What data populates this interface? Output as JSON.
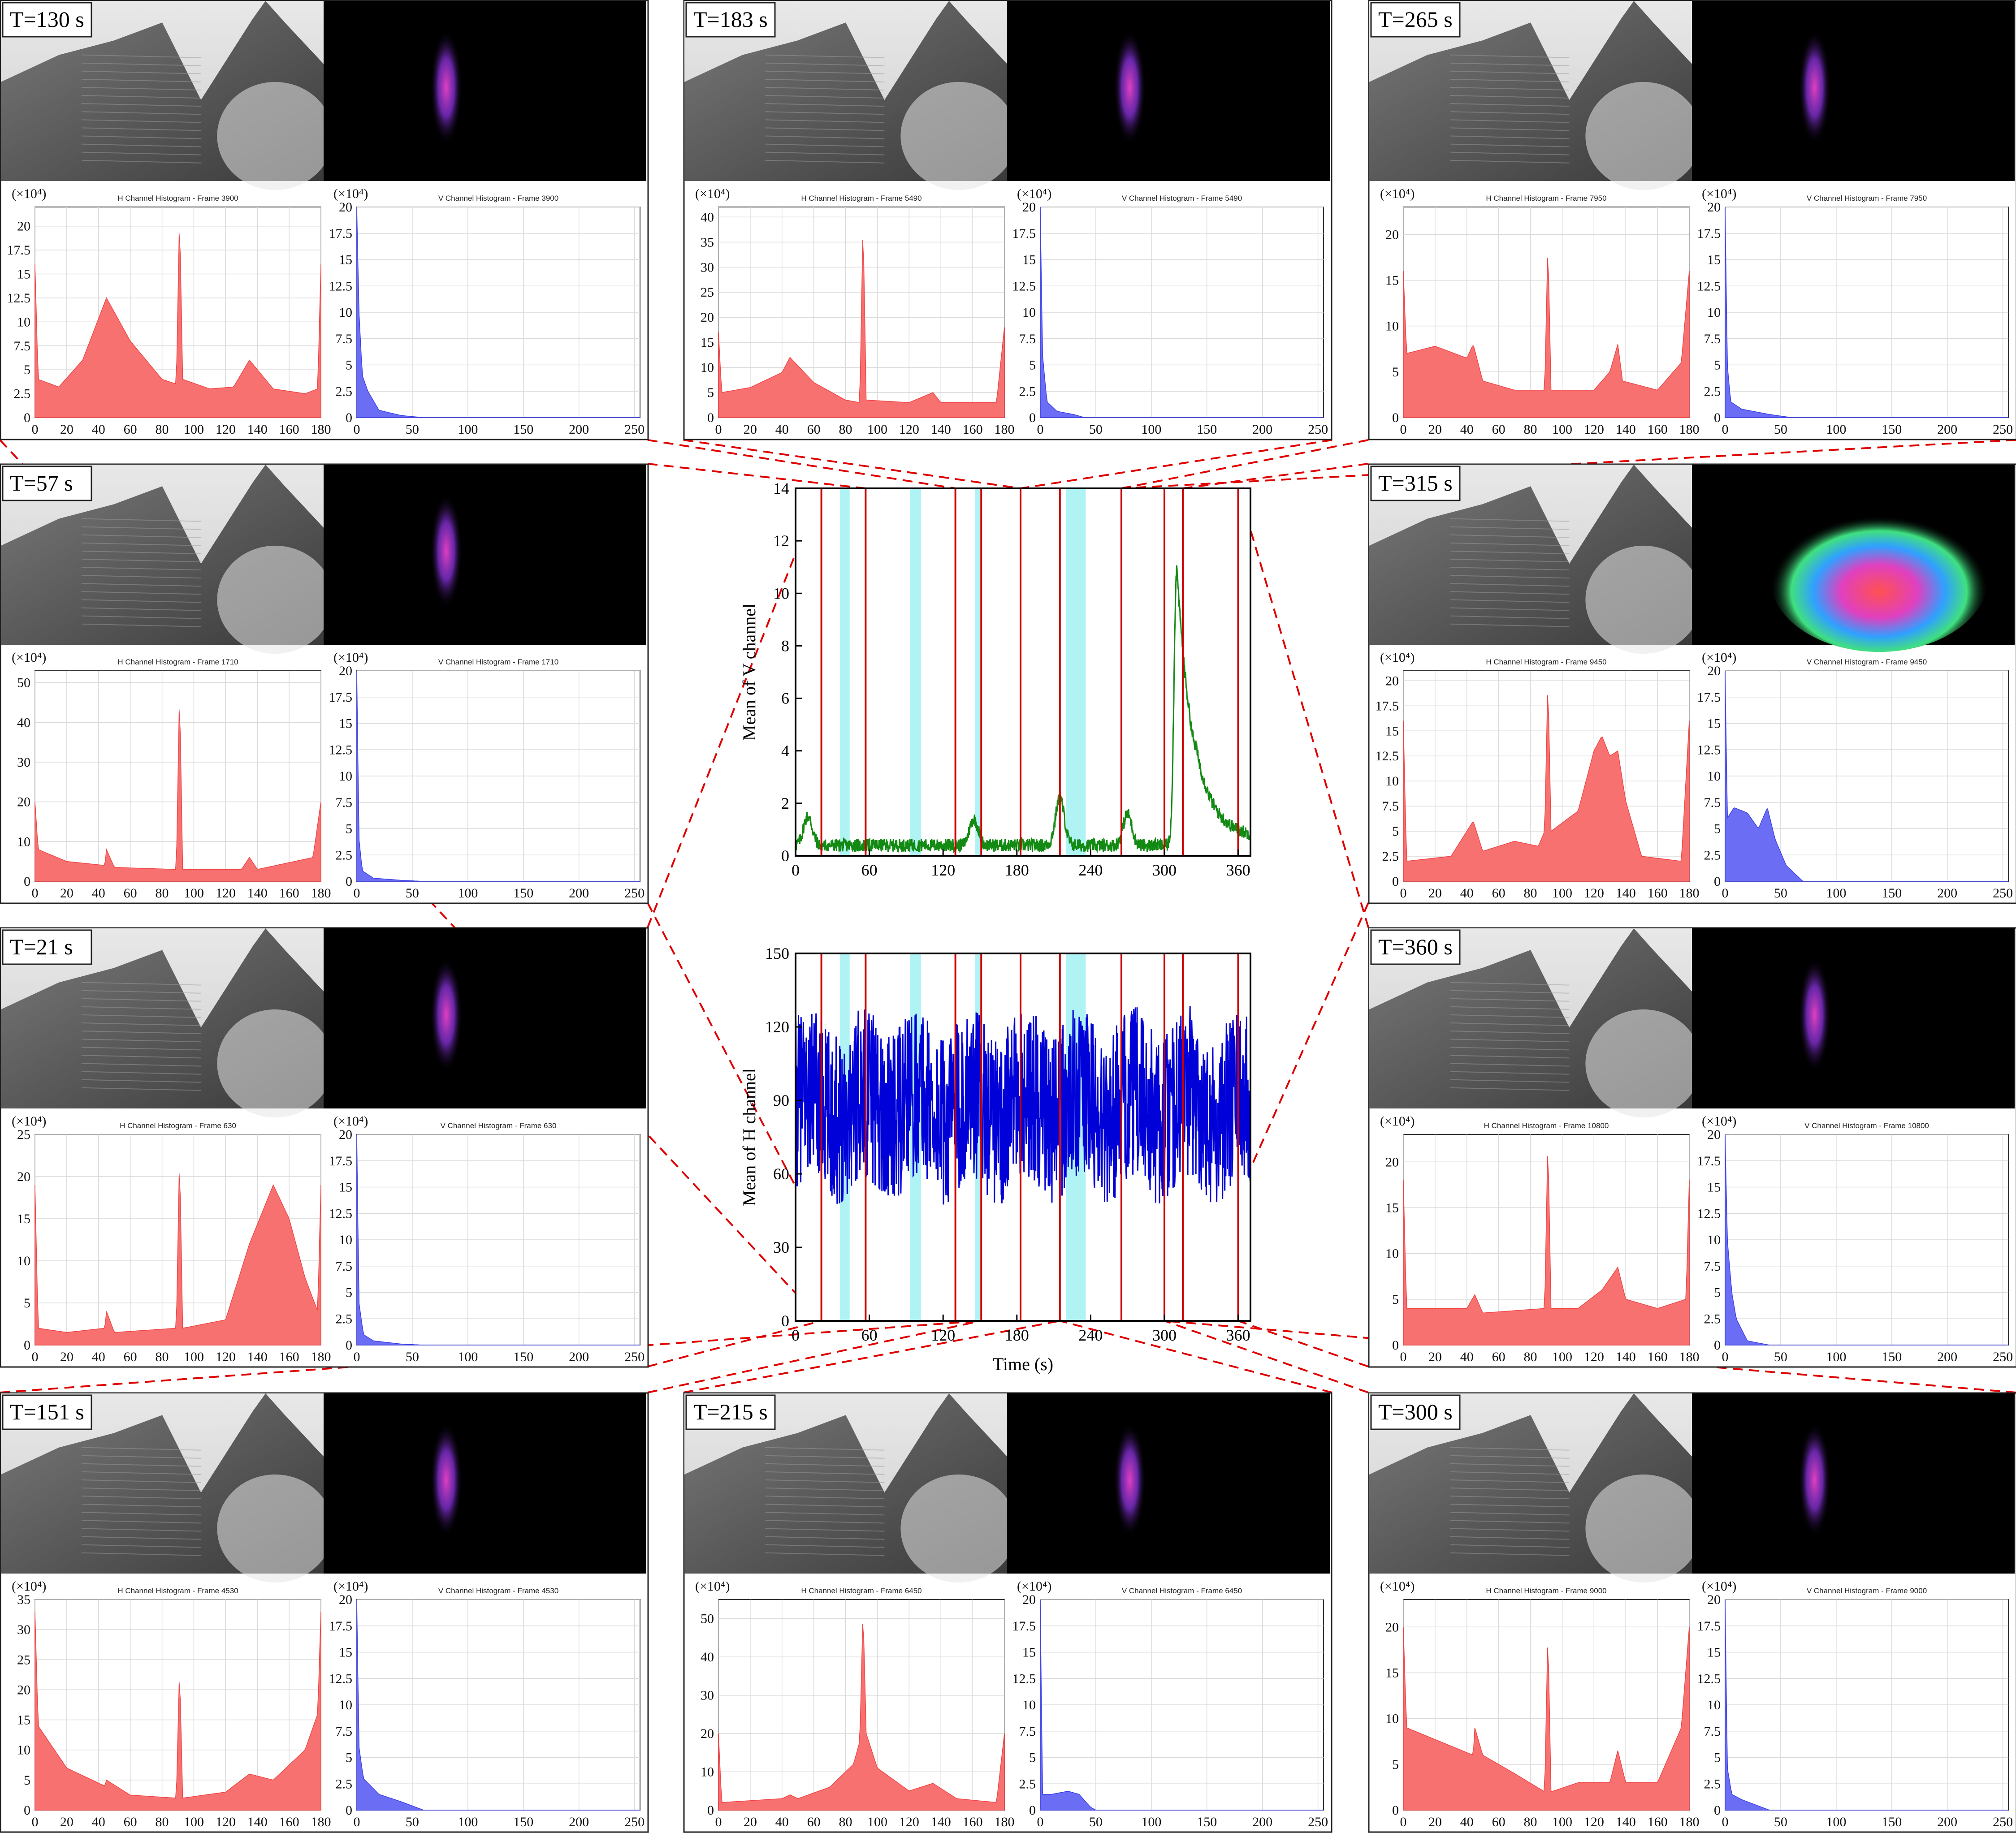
{
  "colors": {
    "h_fill": "#f87171",
    "h_stroke": "#ef4444",
    "v_fill": "#6b6ef5",
    "v_stroke": "#3b3fe6",
    "v_mean_line": "#138a13",
    "h_mean_line": "#0000d8",
    "marker_line": "#cc0000",
    "span_fill": "#aff3f5",
    "connector": "#e00000",
    "grid": "#d9d9d9"
  },
  "hist_common": {
    "h_x_ticks": [
      "0",
      "20",
      "40",
      "60",
      "80",
      "100",
      "120",
      "140",
      "160",
      "180"
    ],
    "v_x_ticks": [
      "0",
      "50",
      "100",
      "150",
      "200",
      "250"
    ],
    "v_y_ticks": [
      "0",
      "2.5",
      "5",
      "7.5",
      "10",
      "12.5",
      "15",
      "17.5",
      "20"
    ],
    "exp_label": "(×10⁴)",
    "h_title_prefix": "H Channel Histogram - Frame ",
    "v_title_prefix": "V Channel Histogram - Frame "
  },
  "panels": [
    {
      "id": "t130",
      "label": "T=130 s",
      "frame": "3900",
      "h_max": 22,
      "h_y_ticks": [
        "0",
        "2.5",
        "5",
        "7.5",
        "10",
        "12.5",
        "15",
        "17.5",
        "20"
      ],
      "h_shape": [
        [
          0,
          16
        ],
        [
          2,
          4
        ],
        [
          15,
          3.2
        ],
        [
          30,
          6
        ],
        [
          45,
          12.5
        ],
        [
          60,
          8
        ],
        [
          80,
          4
        ],
        [
          89,
          3.5
        ],
        [
          91,
          21.5
        ],
        [
          93,
          4
        ],
        [
          110,
          3
        ],
        [
          125,
          3.2
        ],
        [
          135,
          6
        ],
        [
          150,
          3
        ],
        [
          170,
          2.5
        ],
        [
          178,
          3
        ],
        [
          180,
          16
        ]
      ],
      "v_shape": [
        [
          0,
          20
        ],
        [
          2,
          10
        ],
        [
          5,
          4
        ],
        [
          10,
          2.5
        ],
        [
          20,
          0.7
        ],
        [
          40,
          0.2
        ],
        [
          60,
          0
        ]
      ],
      "thumb": "mid"
    },
    {
      "id": "t183",
      "label": "T=183 s",
      "frame": "5490",
      "h_max": 42,
      "h_y_ticks": [
        "0",
        "5",
        "10",
        "15",
        "20",
        "25",
        "30",
        "35",
        "40"
      ],
      "h_shape": [
        [
          0,
          17
        ],
        [
          2,
          5
        ],
        [
          20,
          6
        ],
        [
          40,
          9
        ],
        [
          45,
          12
        ],
        [
          60,
          7
        ],
        [
          80,
          3.5
        ],
        [
          89,
          3
        ],
        [
          91,
          40
        ],
        [
          93,
          3.5
        ],
        [
          120,
          3
        ],
        [
          135,
          5
        ],
        [
          140,
          3
        ],
        [
          175,
          3
        ],
        [
          180,
          18
        ]
      ],
      "v_shape": [
        [
          0,
          20
        ],
        [
          2,
          6
        ],
        [
          6,
          1.5
        ],
        [
          15,
          0.6
        ],
        [
          30,
          0.3
        ],
        [
          40,
          0
        ]
      ],
      "thumb": "mid"
    },
    {
      "id": "t265",
      "label": "T=265 s",
      "frame": "7950",
      "h_max": 23,
      "h_y_ticks": [
        "0",
        "5",
        "10",
        "15",
        "20"
      ],
      "h_shape": [
        [
          0,
          16
        ],
        [
          2,
          7
        ],
        [
          20,
          7.8
        ],
        [
          40,
          6.5
        ],
        [
          44,
          8
        ],
        [
          50,
          4
        ],
        [
          70,
          3
        ],
        [
          89,
          3
        ],
        [
          91,
          19.5
        ],
        [
          93,
          3
        ],
        [
          120,
          3
        ],
        [
          130,
          5
        ],
        [
          135,
          8
        ],
        [
          138,
          4
        ],
        [
          160,
          3
        ],
        [
          175,
          6
        ],
        [
          180,
          16
        ]
      ],
      "v_shape": [
        [
          0,
          20
        ],
        [
          2,
          5
        ],
        [
          5,
          1.5
        ],
        [
          15,
          0.8
        ],
        [
          40,
          0.3
        ],
        [
          60,
          0
        ]
      ],
      "thumb": "mid"
    },
    {
      "id": "t57",
      "label": "T=57 s",
      "frame": "1710",
      "h_max": 53,
      "h_y_ticks": [
        "0",
        "10",
        "20",
        "30",
        "40",
        "50"
      ],
      "h_shape": [
        [
          0,
          20
        ],
        [
          2,
          8
        ],
        [
          20,
          5
        ],
        [
          44,
          4
        ],
        [
          45,
          8
        ],
        [
          50,
          3.5
        ],
        [
          89,
          3
        ],
        [
          91,
          49
        ],
        [
          93,
          3
        ],
        [
          130,
          3
        ],
        [
          135,
          6
        ],
        [
          140,
          3
        ],
        [
          175,
          6
        ],
        [
          180,
          20
        ]
      ],
      "v_shape": [
        [
          0,
          20
        ],
        [
          2,
          4
        ],
        [
          5,
          1
        ],
        [
          15,
          0.3
        ],
        [
          40,
          0.1
        ],
        [
          60,
          0
        ]
      ],
      "thumb": "mid"
    },
    {
      "id": "t315",
      "label": "T=315 s",
      "frame": "9450",
      "h_max": 21,
      "h_y_ticks": [
        "0",
        "2.5",
        "5",
        "7.5",
        "10",
        "12.5",
        "15",
        "17.5",
        "20"
      ],
      "h_shape": [
        [
          0,
          16
        ],
        [
          2,
          2
        ],
        [
          30,
          2.5
        ],
        [
          44,
          6
        ],
        [
          50,
          3
        ],
        [
          70,
          4
        ],
        [
          85,
          3.5
        ],
        [
          89,
          5
        ],
        [
          91,
          20.5
        ],
        [
          93,
          5
        ],
        [
          110,
          7
        ],
        [
          120,
          13
        ],
        [
          125,
          14.5
        ],
        [
          130,
          12.5
        ],
        [
          135,
          13
        ],
        [
          140,
          8
        ],
        [
          150,
          2.5
        ],
        [
          175,
          2
        ],
        [
          180,
          16
        ]
      ],
      "v_shape": [
        [
          0,
          20
        ],
        [
          2,
          6
        ],
        [
          8,
          7
        ],
        [
          20,
          6.5
        ],
        [
          30,
          5
        ],
        [
          38,
          7
        ],
        [
          45,
          4
        ],
        [
          55,
          1.5
        ],
        [
          70,
          0
        ]
      ],
      "thumb": "mid"
    },
    {
      "id": "t21",
      "label": "T=21 s",
      "frame": "630",
      "h_max": 25,
      "h_y_ticks": [
        "0",
        "5",
        "10",
        "15",
        "20",
        "25"
      ],
      "h_shape": [
        [
          0,
          19
        ],
        [
          2,
          2
        ],
        [
          20,
          1.5
        ],
        [
          44,
          2
        ],
        [
          45,
          4
        ],
        [
          50,
          1.5
        ],
        [
          89,
          2
        ],
        [
          91,
          23
        ],
        [
          93,
          2
        ],
        [
          120,
          3
        ],
        [
          135,
          12
        ],
        [
          150,
          19
        ],
        [
          160,
          15
        ],
        [
          170,
          8
        ],
        [
          178,
          4
        ],
        [
          180,
          19
        ]
      ],
      "v_shape": [
        [
          0,
          20
        ],
        [
          2,
          4
        ],
        [
          6,
          1
        ],
        [
          15,
          0.4
        ],
        [
          40,
          0.1
        ],
        [
          60,
          0
        ]
      ],
      "thumb": "mid"
    },
    {
      "id": "t360",
      "label": "T=360 s",
      "frame": "10800",
      "h_max": 23,
      "h_y_ticks": [
        "0",
        "5",
        "10",
        "15",
        "20"
      ],
      "h_shape": [
        [
          0,
          18
        ],
        [
          2,
          4
        ],
        [
          40,
          4
        ],
        [
          45,
          5.5
        ],
        [
          50,
          3.5
        ],
        [
          89,
          4
        ],
        [
          91,
          23
        ],
        [
          93,
          4
        ],
        [
          110,
          4
        ],
        [
          125,
          6
        ],
        [
          135,
          8.5
        ],
        [
          140,
          5
        ],
        [
          160,
          4
        ],
        [
          178,
          5
        ],
        [
          180,
          18
        ]
      ],
      "v_shape": [
        [
          0,
          20
        ],
        [
          2,
          10
        ],
        [
          6,
          5
        ],
        [
          10,
          2.5
        ],
        [
          20,
          0.4
        ],
        [
          40,
          0
        ]
      ],
      "thumb": "mid"
    },
    {
      "id": "t151",
      "label": "T=151 s",
      "frame": "4530",
      "h_max": 35,
      "h_y_ticks": [
        "0",
        "5",
        "10",
        "15",
        "20",
        "25",
        "30",
        "35"
      ],
      "h_shape": [
        [
          0,
          33
        ],
        [
          2,
          14
        ],
        [
          20,
          7
        ],
        [
          44,
          4
        ],
        [
          45,
          5
        ],
        [
          60,
          2.5
        ],
        [
          89,
          2
        ],
        [
          91,
          24
        ],
        [
          93,
          2
        ],
        [
          120,
          3
        ],
        [
          135,
          6
        ],
        [
          150,
          5
        ],
        [
          170,
          10
        ],
        [
          178,
          16
        ],
        [
          180,
          33
        ]
      ],
      "v_shape": [
        [
          0,
          20
        ],
        [
          2,
          6
        ],
        [
          6,
          3
        ],
        [
          20,
          1.5
        ],
        [
          40,
          0.8
        ],
        [
          60,
          0
        ]
      ],
      "thumb": "mid"
    },
    {
      "id": "t215",
      "label": "T=215 s",
      "frame": "6450",
      "h_max": 55,
      "h_y_ticks": [
        "0",
        "10",
        "20",
        "30",
        "40",
        "50"
      ],
      "h_shape": [
        [
          0,
          20
        ],
        [
          2,
          2
        ],
        [
          40,
          3
        ],
        [
          45,
          4
        ],
        [
          50,
          3
        ],
        [
          70,
          6
        ],
        [
          85,
          12
        ],
        [
          89,
          18
        ],
        [
          91,
          53
        ],
        [
          93,
          20
        ],
        [
          100,
          11
        ],
        [
          120,
          5
        ],
        [
          135,
          7
        ],
        [
          150,
          3
        ],
        [
          175,
          2
        ],
        [
          180,
          20
        ]
      ],
      "v_shape": [
        [
          0,
          20
        ],
        [
          2,
          1.5
        ],
        [
          10,
          1.5
        ],
        [
          25,
          1.8
        ],
        [
          35,
          1.5
        ],
        [
          45,
          0.3
        ],
        [
          50,
          0
        ]
      ],
      "thumb": "mid"
    },
    {
      "id": "t300",
      "label": "T=300 s",
      "frame": "9000",
      "h_max": 23,
      "h_y_ticks": [
        "0",
        "5",
        "10",
        "15",
        "20"
      ],
      "h_shape": [
        [
          0,
          20
        ],
        [
          2,
          9
        ],
        [
          30,
          7
        ],
        [
          44,
          6
        ],
        [
          45,
          9
        ],
        [
          50,
          6
        ],
        [
          70,
          4
        ],
        [
          89,
          2
        ],
        [
          91,
          20
        ],
        [
          93,
          2
        ],
        [
          110,
          3
        ],
        [
          130,
          3
        ],
        [
          135,
          6.5
        ],
        [
          140,
          3
        ],
        [
          160,
          3
        ],
        [
          175,
          9
        ],
        [
          180,
          20
        ]
      ],
      "v_shape": [
        [
          0,
          20
        ],
        [
          2,
          4
        ],
        [
          6,
          1.5
        ],
        [
          15,
          1
        ],
        [
          30,
          0.4
        ],
        [
          40,
          0
        ]
      ],
      "thumb": "mid"
    }
  ],
  "chart_data": [
    {
      "type": "line",
      "title": "",
      "xlabel": "",
      "ylabel": "Mean of V channel",
      "xlim": [
        0,
        370
      ],
      "ylim": [
        0,
        14
      ],
      "x_ticks": [
        "0",
        "60",
        "120",
        "180",
        "240",
        "300",
        "360"
      ],
      "y_ticks": [
        "0",
        "2",
        "4",
        "6",
        "8",
        "10",
        "12",
        "14"
      ],
      "series_summary": {
        "baseline": 0.4,
        "peak_time": 310,
        "peak_value": 11.0,
        "bumps": [
          [
            10,
            1.1
          ],
          [
            145,
            1.0
          ],
          [
            215,
            1.8
          ],
          [
            270,
            1.2
          ]
        ]
      },
      "marker_times": [
        21,
        57,
        130,
        151,
        183,
        215,
        265,
        300,
        315,
        360
      ],
      "spans": [
        [
          36,
          44
        ],
        [
          93,
          102
        ],
        [
          146,
          150
        ],
        [
          220,
          236
        ]
      ]
    },
    {
      "type": "line",
      "title": "",
      "xlabel": "Time (s)",
      "ylabel": "Mean of H channel",
      "xlim": [
        0,
        370
      ],
      "ylim": [
        0,
        150
      ],
      "x_ticks": [
        "0",
        "60",
        "120",
        "180",
        "240",
        "300",
        "360"
      ],
      "y_ticks": [
        "0",
        "30",
        "60",
        "90",
        "120",
        "150"
      ],
      "series_summary": {
        "mean": 88,
        "range": [
          45,
          135
        ]
      },
      "marker_times": [
        21,
        57,
        130,
        151,
        183,
        215,
        265,
        300,
        315,
        360
      ],
      "spans": [
        [
          36,
          44
        ],
        [
          93,
          102
        ],
        [
          146,
          150
        ],
        [
          220,
          236
        ]
      ]
    }
  ]
}
